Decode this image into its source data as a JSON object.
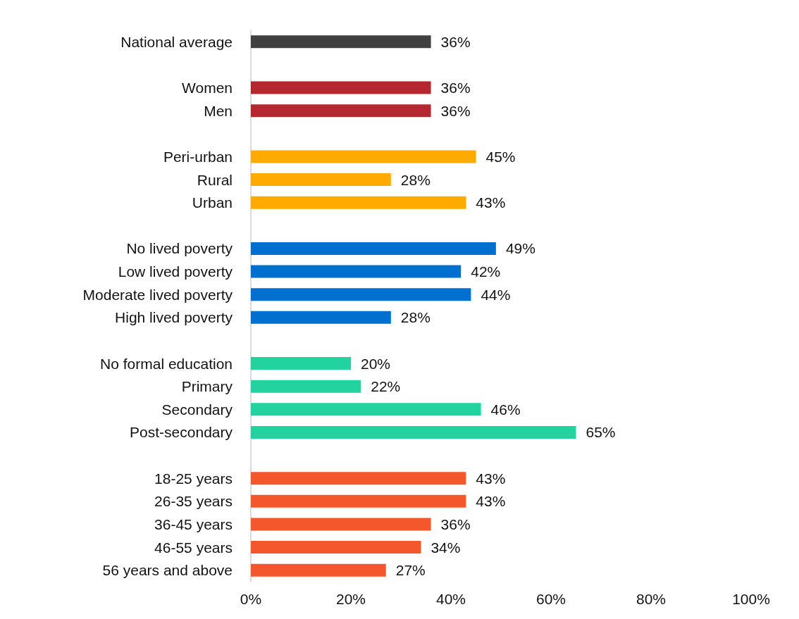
{
  "chart_data": {
    "type": "bar",
    "orientation": "horizontal",
    "categories": [
      "National average",
      null,
      "Women",
      "Men",
      null,
      "Peri-urban",
      "Rural",
      "Urban",
      null,
      "No lived poverty",
      "Low lived poverty",
      "Moderate lived poverty",
      "High lived poverty",
      null,
      "No formal education",
      "Primary",
      "Secondary",
      "Post-secondary",
      null,
      "18-25 years",
      "26-35 years",
      "36-45 years",
      "46-55 years",
      "56 years and above"
    ],
    "values": [
      36,
      null,
      36,
      36,
      null,
      45,
      28,
      43,
      null,
      49,
      42,
      44,
      28,
      null,
      20,
      22,
      46,
      65,
      null,
      43,
      43,
      36,
      34,
      27
    ],
    "value_labels": [
      "36%",
      null,
      "36%",
      "36%",
      null,
      "45%",
      "28%",
      "43%",
      null,
      "49%",
      "42%",
      "44%",
      "28%",
      null,
      "20%",
      "22%",
      "46%",
      "65%",
      null,
      "43%",
      "43%",
      "36%",
      "34%",
      "27%"
    ],
    "colors": [
      "#404040",
      null,
      "#b5282f",
      "#b5282f",
      null,
      "#ffaa00",
      "#ffaa00",
      "#ffaa00",
      null,
      "#0070d0",
      "#0070d0",
      "#0070d0",
      "#0070d0",
      null,
      "#22d3a0",
      "#22d3a0",
      "#22d3a0",
      "#22d3a0",
      null,
      "#f4572c",
      "#f4572c",
      "#f4572c",
      "#f4572c",
      "#f4572c"
    ],
    "xlim": [
      0,
      100
    ],
    "xticks": [
      {
        "value": 0,
        "label": "0%"
      },
      {
        "value": 20,
        "label": "20%"
      },
      {
        "value": 40,
        "label": "40%"
      },
      {
        "value": 60,
        "label": "60%"
      },
      {
        "value": 80,
        "label": "80%"
      },
      {
        "value": 100,
        "label": "100%"
      }
    ],
    "grid": false
  }
}
